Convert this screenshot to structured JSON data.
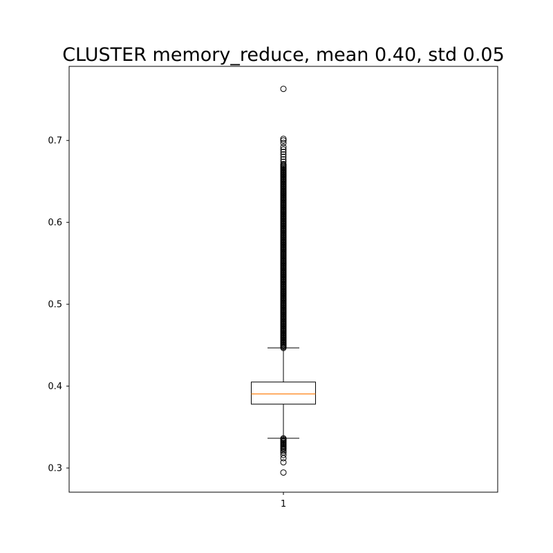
{
  "chart_data": {
    "type": "box",
    "title": "CLUSTER memory_reduce, mean 0.40, std 0.05",
    "xlabel": "",
    "ylabel": "",
    "categories": [
      "1"
    ],
    "ylim": [
      0.2705,
      0.7905
    ],
    "yticks": [
      0.3,
      0.4,
      0.5,
      0.6,
      0.7
    ],
    "ytick_labels": [
      "0.3",
      "0.4",
      "0.5",
      "0.6",
      "0.7"
    ],
    "grid": false,
    "box": {
      "q1": 0.378,
      "median": 0.3905,
      "q3": 0.405,
      "whisker_low": 0.3363,
      "whisker_high": 0.4467
    },
    "outliers_high_dense_range": [
      0.4467,
      0.672
    ],
    "outliers_high": [
      0.674,
      0.677,
      0.68,
      0.683,
      0.686,
      0.689,
      0.692,
      0.697,
      0.7,
      0.702,
      0.763
    ],
    "outliers_low_dense_range": [
      0.323,
      0.3363
    ],
    "outliers_low": [
      0.321,
      0.319,
      0.316,
      0.312,
      0.307,
      0.2945
    ],
    "colors": {
      "box": "#000000",
      "median": "#ff7f0e",
      "outlier": "#000000"
    }
  }
}
